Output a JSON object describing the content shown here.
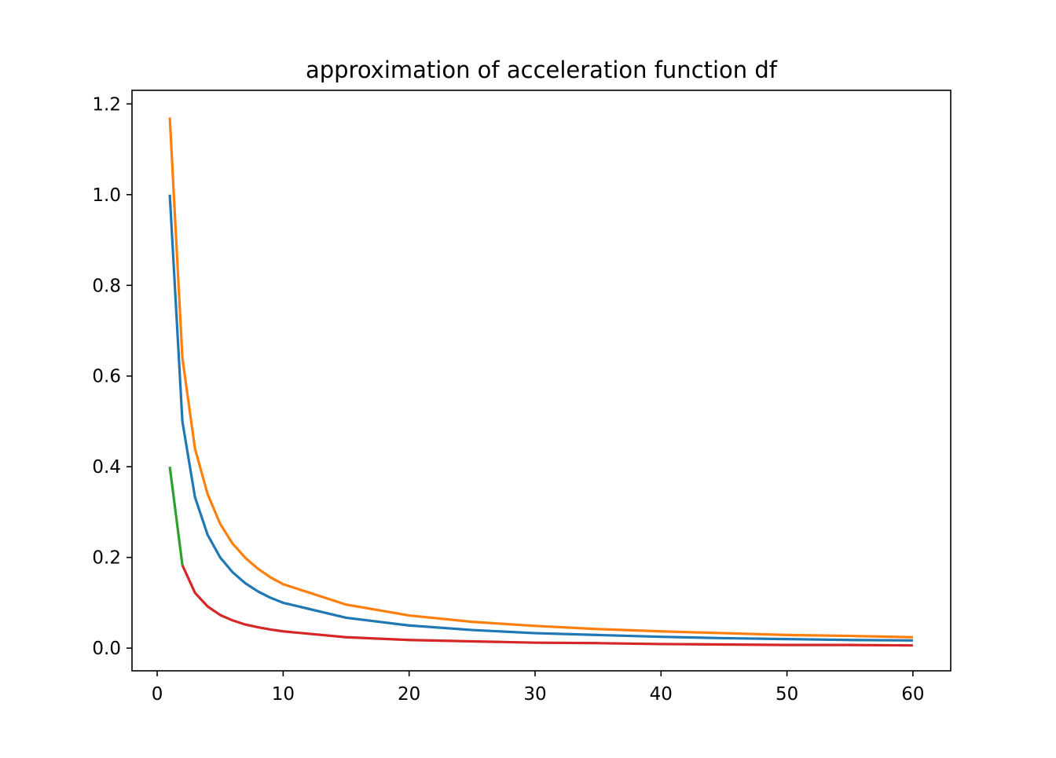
{
  "chart_data": {
    "type": "line",
    "title": "approximation of acceleration function df",
    "xlabel": "",
    "ylabel": "",
    "xlim": [
      -2,
      63
    ],
    "ylim": [
      -0.05,
      1.23
    ],
    "xticks": [
      0,
      10,
      20,
      30,
      40,
      50,
      60
    ],
    "yticks": [
      0.0,
      0.2,
      0.4,
      0.6,
      0.8,
      1.0,
      1.2
    ],
    "grid": false,
    "series": [
      {
        "color": "#1f77b4",
        "x": [
          1,
          2,
          3,
          4,
          5,
          6,
          7,
          8,
          9,
          10,
          15,
          20,
          25,
          30,
          35,
          40,
          45,
          50,
          55,
          60
        ],
        "y": [
          1.0,
          0.5,
          0.333,
          0.25,
          0.2,
          0.167,
          0.143,
          0.125,
          0.111,
          0.1,
          0.067,
          0.05,
          0.04,
          0.033,
          0.029,
          0.025,
          0.022,
          0.02,
          0.018,
          0.017
        ]
      },
      {
        "color": "#ff7f0e",
        "x": [
          1,
          2,
          3,
          4,
          5,
          6,
          7,
          8,
          9,
          10,
          15,
          20,
          25,
          30,
          35,
          40,
          45,
          50,
          55,
          60
        ],
        "y": [
          1.17,
          0.64,
          0.44,
          0.34,
          0.274,
          0.23,
          0.199,
          0.175,
          0.156,
          0.141,
          0.096,
          0.072,
          0.058,
          0.049,
          0.042,
          0.037,
          0.033,
          0.029,
          0.027,
          0.024
        ]
      },
      {
        "color": "#2ca02c",
        "x": [
          1,
          2
        ],
        "y": [
          0.4,
          0.183
        ]
      },
      {
        "color": "#d62728",
        "x": [
          2,
          3,
          4,
          5,
          6,
          7,
          8,
          9,
          10,
          15,
          20,
          25,
          30,
          35,
          40,
          45,
          50,
          55,
          60
        ],
        "y": [
          0.183,
          0.122,
          0.092,
          0.073,
          0.061,
          0.052,
          0.046,
          0.041,
          0.037,
          0.024,
          0.018,
          0.015,
          0.012,
          0.011,
          0.009,
          0.008,
          0.007,
          0.007,
          0.006
        ]
      }
    ]
  }
}
